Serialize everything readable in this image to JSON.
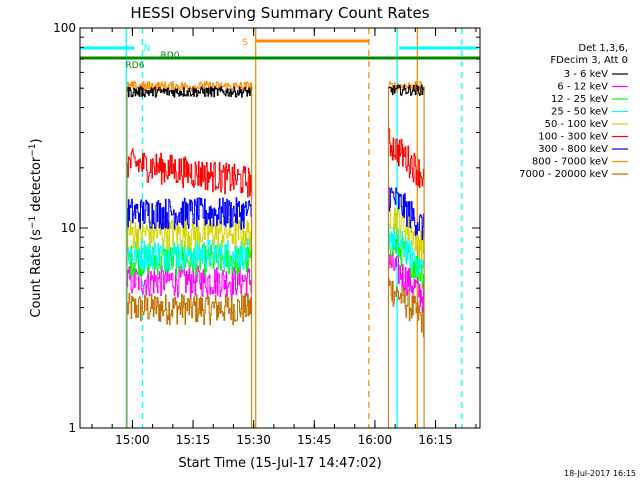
{
  "chart_data": {
    "type": "line",
    "title": "HESSI Observing Summary Count Rates",
    "xlabel": "Start Time (15-Jul-17 14:47:02)",
    "ylabel": "Count Rate (s⁻¹ detector⁻¹)",
    "y_scale": "log",
    "ylim": [
      1,
      100
    ],
    "xlim": [
      "14:47:02",
      "16:26:00"
    ],
    "x_ticks": [
      "15:00",
      "15:15",
      "15:30",
      "15:45",
      "16:00",
      "16:15"
    ],
    "y_ticks": [
      "1",
      "10",
      "100"
    ],
    "footer_date": "18-Jul-2017 16:15",
    "legend_header": [
      "Det 1,3,6,",
      "FDecim 3, Att 0"
    ],
    "segments": [
      {
        "start": "14:58:40",
        "end": "15:29:30"
      },
      {
        "start": "16:03:20",
        "end": "16:12:10"
      }
    ],
    "series": [
      {
        "name": "3 - 6 keV",
        "color": "#000000",
        "values": [
          48,
          49
        ]
      },
      {
        "name": "6 - 12 keV",
        "color": "#ff00ff",
        "values": [
          5.5,
          5.0
        ]
      },
      {
        "name": "12 - 25 keV",
        "color": "#00ff00",
        "values": [
          7.0,
          6.5
        ]
      },
      {
        "name": "25 - 50 keV",
        "color": "#00ffff",
        "values": [
          7.5,
          7.0
        ]
      },
      {
        "name": "50 - 100 keV",
        "color": "#d4d400",
        "values": [
          9.5,
          9.0
        ]
      },
      {
        "name": "100 - 300 keV",
        "color": "#ff0000",
        "values": [
          19,
          20
        ]
      },
      {
        "name": "300 - 800 keV",
        "color": "#0000ff",
        "values": [
          12,
          11
        ]
      },
      {
        "name": "800 - 7000 keV",
        "color": "#ff8c00",
        "values": [
          51,
          51
        ]
      },
      {
        "name": "7000 - 20000 keV",
        "color": "#c07000",
        "values": [
          4,
          3.8
        ]
      }
    ],
    "flag_bars": [
      {
        "label": "N",
        "color": "#00ffff",
        "ranges": [
          [
            "14:47:02",
            "15:00:30"
          ],
          [
            "16:06:00",
            "16:25:30"
          ]
        ]
      },
      {
        "label": "S",
        "color": "#ff8c00",
        "ranges": [
          [
            "15:30:30",
            "15:58:30"
          ]
        ]
      },
      {
        "label": "RD0",
        "color": "#008800",
        "ranges": [
          [
            "15:06:00",
            "16:26:00"
          ]
        ]
      },
      {
        "label": "RD6",
        "color": "#008800",
        "ranges": [
          [
            "14:47:02",
            "15:06:00"
          ]
        ]
      }
    ],
    "vlines": [
      {
        "time": "14:58:30",
        "color": "#00ffff",
        "style": "solid"
      },
      {
        "time": "15:02:30",
        "color": "#00ffff",
        "style": "dashed"
      },
      {
        "time": "15:30:30",
        "color": "#ff8c00",
        "style": "solid"
      },
      {
        "time": "15:58:30",
        "color": "#ff8c00",
        "style": "dashed"
      },
      {
        "time": "16:05:30",
        "color": "#00ffff",
        "style": "solid"
      },
      {
        "time": "16:10:30",
        "color": "#ff8c00",
        "style": "solid"
      },
      {
        "time": "16:21:30",
        "color": "#00ffff",
        "style": "dashed"
      }
    ]
  }
}
